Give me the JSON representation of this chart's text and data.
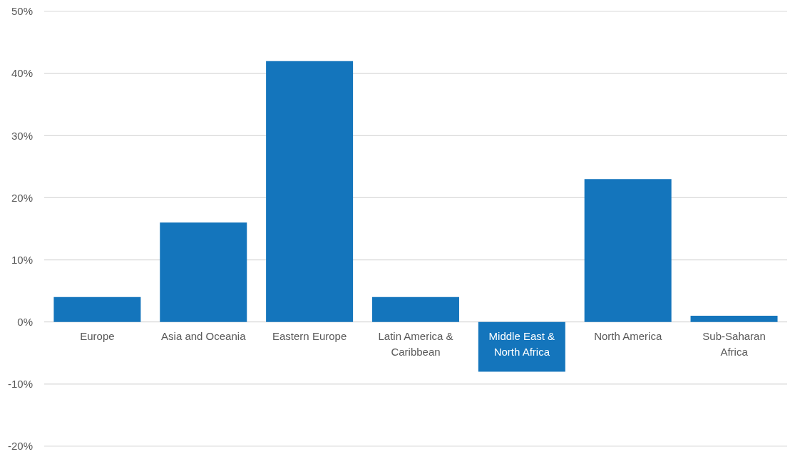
{
  "chart_data": {
    "type": "bar",
    "categories": [
      "Europe",
      "Asia and Oceania",
      "Eastern Europe",
      "Latin America & Caribbean",
      "Middle East & North Africa",
      "North America",
      "Sub-Saharan Africa"
    ],
    "values": [
      4,
      16,
      42,
      4,
      -8,
      23,
      1
    ],
    "color": "#1475bc",
    "ylim": [
      -20,
      50
    ],
    "yticks": [
      {
        "value": -20,
        "label": "-20%"
      },
      {
        "value": -10,
        "label": "-10%"
      },
      {
        "value": 0,
        "label": "0%"
      },
      {
        "value": 10,
        "label": "10%"
      },
      {
        "value": 20,
        "label": "20%"
      },
      {
        "value": 30,
        "label": "30%"
      },
      {
        "value": 40,
        "label": "40%"
      },
      {
        "value": 50,
        "label": "50%"
      }
    ],
    "grid": "y"
  }
}
